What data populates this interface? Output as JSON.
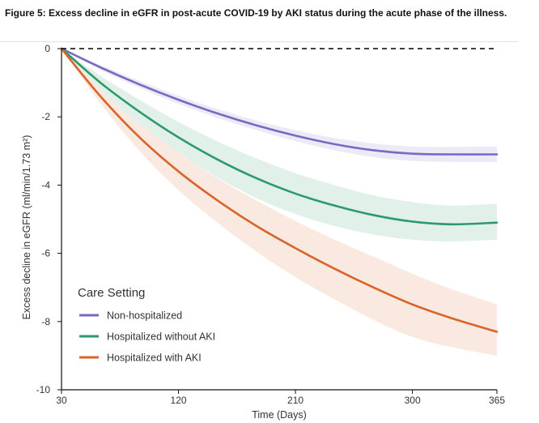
{
  "figure_title": "Figure 5: Excess decline in eGFR in post-acute COVID-19 by AKI status during the acute phase of the illness.",
  "chart_data": {
    "type": "line",
    "xlabel": "Time (Days)",
    "ylabel": "Excess decline in eGFR (ml/min/1.73 m²)",
    "xlim": [
      30,
      365
    ],
    "ylim": [
      -10,
      0
    ],
    "xticks": [
      30,
      120,
      210,
      300,
      365
    ],
    "yticks": [
      0,
      -2,
      -4,
      -6,
      -8,
      -10
    ],
    "reference_line": {
      "y": 0,
      "style": "dashed",
      "color": "#000000"
    },
    "x": [
      30,
      60,
      90,
      120,
      150,
      180,
      210,
      240,
      270,
      300,
      330,
      365
    ],
    "legend": {
      "title": "Care Setting",
      "position": "bottom-left"
    },
    "series": [
      {
        "name": "Non-hospitalized",
        "color": "#7b68c2",
        "values": [
          0,
          -0.55,
          -1.05,
          -1.5,
          -1.9,
          -2.25,
          -2.55,
          -2.8,
          -2.98,
          -3.08,
          -3.1,
          -3.1
        ],
        "lower": [
          0,
          -0.62,
          -1.15,
          -1.62,
          -2.03,
          -2.39,
          -2.71,
          -2.98,
          -3.18,
          -3.29,
          -3.32,
          -3.33
        ],
        "upper": [
          0,
          -0.48,
          -0.95,
          -1.38,
          -1.77,
          -2.11,
          -2.39,
          -2.62,
          -2.78,
          -2.87,
          -2.88,
          -2.87
        ]
      },
      {
        "name": "Hospitalized without AKI",
        "color": "#2e9a6c",
        "values": [
          0,
          -1.0,
          -1.85,
          -2.6,
          -3.25,
          -3.8,
          -4.25,
          -4.6,
          -4.88,
          -5.07,
          -5.15,
          -5.1
        ],
        "lower": [
          0,
          -1.2,
          -2.2,
          -3.05,
          -3.78,
          -4.38,
          -4.85,
          -5.2,
          -5.45,
          -5.6,
          -5.65,
          -5.6
        ],
        "upper": [
          0,
          -0.8,
          -1.5,
          -2.15,
          -2.72,
          -3.22,
          -3.65,
          -4.0,
          -4.3,
          -4.5,
          -4.6,
          -4.55
        ]
      },
      {
        "name": "Hospitalized with AKI",
        "color": "#d9642a",
        "values": [
          0,
          -1.4,
          -2.6,
          -3.6,
          -4.45,
          -5.2,
          -5.85,
          -6.45,
          -7.0,
          -7.5,
          -7.9,
          -8.3
        ],
        "lower": [
          0,
          -1.6,
          -3.0,
          -4.15,
          -5.1,
          -5.95,
          -6.7,
          -7.35,
          -7.95,
          -8.45,
          -8.75,
          -9.0
        ],
        "upper": [
          0,
          -1.2,
          -2.2,
          -3.05,
          -3.8,
          -4.45,
          -5.05,
          -5.6,
          -6.1,
          -6.6,
          -7.05,
          -7.5
        ]
      }
    ]
  }
}
